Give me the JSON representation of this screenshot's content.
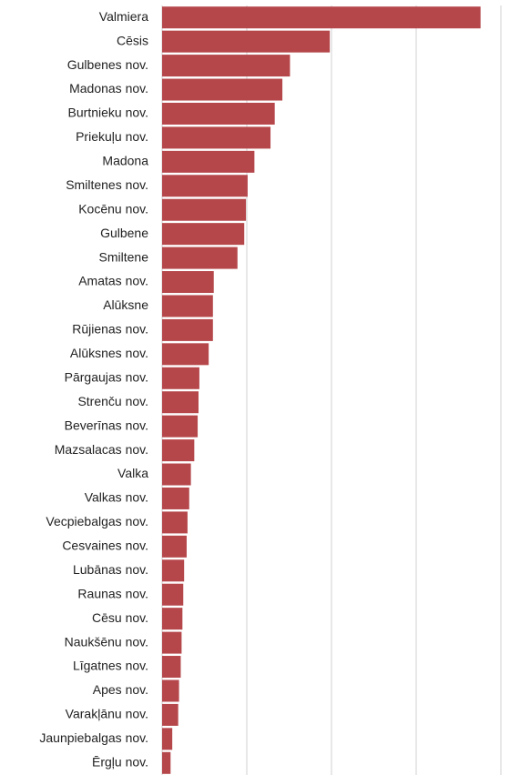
{
  "chart_data": {
    "type": "bar",
    "orientation": "horizontal",
    "categories": [
      "Valmiera",
      "Cēsis",
      "Gulbenes nov.",
      "Madonas nov.",
      "Burtnieku nov.",
      "Priekuļu nov.",
      "Madona",
      "Smiltenes nov.",
      "Kocēnu nov.",
      "Gulbene",
      "Smiltene",
      "Amatas nov.",
      "Alūksne",
      "Rūjienas nov.",
      "Alūksnes nov.",
      "Pārgaujas nov.",
      "Strenču nov.",
      "Beverīnas nov.",
      "Mazsalacas nov.",
      "Valka",
      "Valkas nov.",
      "Vecpiebalgas nov.",
      "Cesvaines nov.",
      "Lubānas nov.",
      "Raunas nov.",
      "Cēsu nov.",
      "Naukšēnu nov.",
      "Līgatnes nov.",
      "Apes nov.",
      "Varakļānu nov.",
      "Jaunpiebalgas nov.",
      "Ērgļu nov."
    ],
    "values": [
      3.76,
      1.98,
      1.51,
      1.42,
      1.33,
      1.28,
      1.09,
      1.01,
      0.99,
      0.97,
      0.89,
      0.61,
      0.6,
      0.6,
      0.55,
      0.44,
      0.43,
      0.42,
      0.38,
      0.34,
      0.32,
      0.3,
      0.29,
      0.26,
      0.25,
      0.24,
      0.23,
      0.22,
      0.2,
      0.19,
      0.12,
      0.1
    ],
    "color": "#b5474b",
    "xlim": [
      0,
      4.2
    ],
    "xticks": [
      0,
      1,
      2,
      3,
      4
    ],
    "grid": true
  }
}
